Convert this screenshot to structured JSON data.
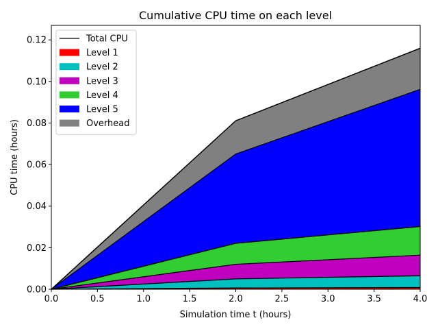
{
  "chart_data": {
    "type": "area",
    "stacked": true,
    "title": "Cumulative CPU time on each level",
    "xlabel": "Simulation time t (hours)",
    "ylabel": "CPU time (hours)",
    "xlim": [
      0,
      4
    ],
    "ylim": [
      0,
      0.127
    ],
    "x": [
      0,
      2,
      4
    ],
    "xticks": [
      "0.0",
      "0.5",
      "1.0",
      "1.5",
      "2.0",
      "2.5",
      "3.0",
      "3.5",
      "4.0"
    ],
    "xtick_values": [
      0,
      0.5,
      1,
      1.5,
      2,
      2.5,
      3,
      3.5,
      4
    ],
    "yticks": [
      "0.00",
      "0.02",
      "0.04",
      "0.06",
      "0.08",
      "0.10",
      "0.12"
    ],
    "ytick_values": [
      0,
      0.02,
      0.04,
      0.06,
      0.08,
      0.1,
      0.12
    ],
    "grid": false,
    "legend_position": "top-left",
    "series": [
      {
        "name": "Level 1",
        "color": "#ff0000",
        "values": [
          0,
          0.0006,
          0.0008
        ]
      },
      {
        "name": "Level 2",
        "color": "#00bfbf",
        "values": [
          0,
          0.0044,
          0.0057
        ]
      },
      {
        "name": "Level 3",
        "color": "#bf00bf",
        "values": [
          0,
          0.007,
          0.0099
        ]
      },
      {
        "name": "Level 4",
        "color": "#32cd32",
        "values": [
          0,
          0.0101,
          0.0138
        ]
      },
      {
        "name": "Level 5",
        "color": "#0000ff",
        "values": [
          0,
          0.043,
          0.066
        ]
      },
      {
        "name": "Overhead",
        "color": "#808080",
        "values": [
          0,
          0.016,
          0.0198
        ]
      }
    ],
    "total_series": {
      "name": "Total CPU",
      "color": "#000000",
      "values": [
        0,
        0.0811,
        0.116
      ]
    }
  }
}
